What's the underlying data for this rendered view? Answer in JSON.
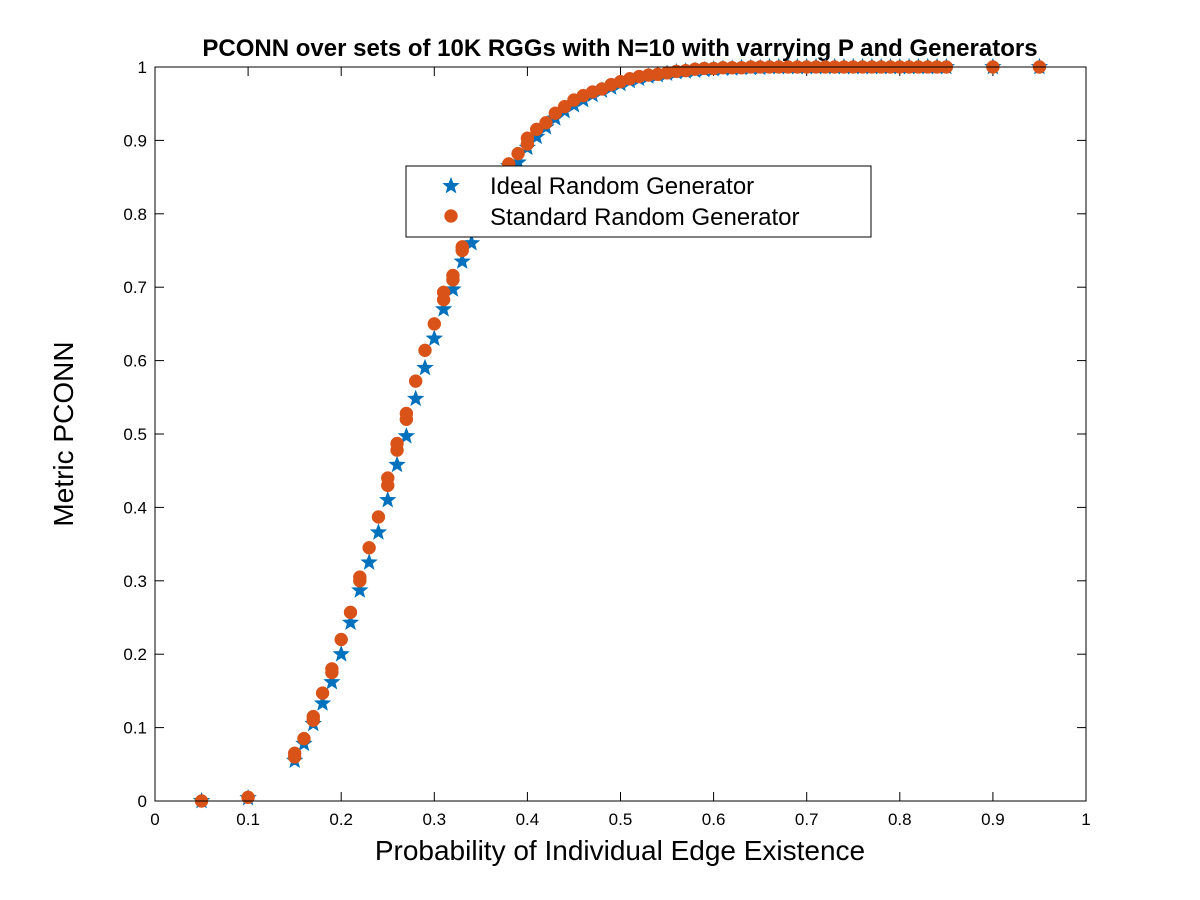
{
  "chart_data": {
    "type": "scatter",
    "title": "PCONN over sets of 10K RGGs with N=10 with varrying P and Generators",
    "xlabel": "Probability of Individual Edge Existence",
    "ylabel": "Metric PCONN",
    "xlim": [
      0,
      1
    ],
    "ylim": [
      0,
      1
    ],
    "xticks": [
      "0",
      "0.1",
      "0.2",
      "0.3",
      "0.4",
      "0.5",
      "0.6",
      "0.7",
      "0.8",
      "0.9",
      "1"
    ],
    "yticks": [
      "0",
      "0.1",
      "0.2",
      "0.3",
      "0.4",
      "0.5",
      "0.6",
      "0.7",
      "0.8",
      "0.9",
      "1"
    ],
    "grid": false,
    "legend_position": "upper-center",
    "series": [
      {
        "name": "Ideal Random Generator",
        "marker": "star",
        "color": "#0072BD",
        "x": [
          0.05,
          0.1,
          0.15,
          0.16,
          0.17,
          0.18,
          0.19,
          0.2,
          0.21,
          0.22,
          0.23,
          0.24,
          0.25,
          0.26,
          0.27,
          0.28,
          0.29,
          0.3,
          0.31,
          0.32,
          0.33,
          0.34,
          0.35,
          0.36,
          0.37,
          0.38,
          0.39,
          0.4,
          0.41,
          0.42,
          0.43,
          0.44,
          0.45,
          0.46,
          0.47,
          0.48,
          0.49,
          0.5,
          0.51,
          0.52,
          0.53,
          0.54,
          0.55,
          0.56,
          0.57,
          0.58,
          0.59,
          0.6,
          0.61,
          0.62,
          0.63,
          0.64,
          0.65,
          0.66,
          0.67,
          0.68,
          0.69,
          0.7,
          0.71,
          0.72,
          0.73,
          0.74,
          0.75,
          0.76,
          0.77,
          0.78,
          0.79,
          0.8,
          0.81,
          0.82,
          0.83,
          0.84,
          0.85,
          0.9,
          0.95
        ],
        "y": [
          0.0,
          0.004,
          0.055,
          0.078,
          0.105,
          0.133,
          0.162,
          0.2,
          0.243,
          0.287,
          0.325,
          0.366,
          0.41,
          0.458,
          0.497,
          0.548,
          0.59,
          0.63,
          0.67,
          0.697,
          0.735,
          0.76,
          0.79,
          0.82,
          0.845,
          0.865,
          0.87,
          0.89,
          0.905,
          0.918,
          0.93,
          0.94,
          0.948,
          0.955,
          0.962,
          0.968,
          0.972,
          0.977,
          0.981,
          0.984,
          0.987,
          0.989,
          0.991,
          0.993,
          0.994,
          0.995,
          0.996,
          0.997,
          0.998,
          0.998,
          0.999,
          0.999,
          0.999,
          1.0,
          1.0,
          1.0,
          1.0,
          1.0,
          1.0,
          1.0,
          1.0,
          1.0,
          1.0,
          1.0,
          1.0,
          1.0,
          1.0,
          1.0,
          1.0,
          1.0,
          1.0,
          1.0,
          1.0,
          1.0,
          1.0
        ]
      },
      {
        "name": "Standard Random Generator",
        "marker": "circle",
        "color": "#D95319",
        "x": [
          0.05,
          0.1,
          0.15,
          0.15,
          0.16,
          0.17,
          0.17,
          0.18,
          0.19,
          0.19,
          0.2,
          0.21,
          0.22,
          0.22,
          0.23,
          0.24,
          0.25,
          0.25,
          0.26,
          0.26,
          0.27,
          0.27,
          0.28,
          0.29,
          0.3,
          0.31,
          0.31,
          0.32,
          0.32,
          0.33,
          0.33,
          0.34,
          0.35,
          0.36,
          0.37,
          0.38,
          0.39,
          0.4,
          0.4,
          0.41,
          0.42,
          0.43,
          0.44,
          0.45,
          0.46,
          0.47,
          0.48,
          0.49,
          0.5,
          0.51,
          0.52,
          0.53,
          0.54,
          0.55,
          0.56,
          0.57,
          0.58,
          0.59,
          0.6,
          0.61,
          0.62,
          0.63,
          0.64,
          0.65,
          0.66,
          0.67,
          0.68,
          0.69,
          0.7,
          0.71,
          0.72,
          0.73,
          0.74,
          0.75,
          0.76,
          0.77,
          0.78,
          0.79,
          0.8,
          0.81,
          0.82,
          0.83,
          0.84,
          0.85,
          0.9,
          0.95
        ],
        "y": [
          0.0,
          0.005,
          0.06,
          0.065,
          0.085,
          0.11,
          0.115,
          0.147,
          0.175,
          0.18,
          0.22,
          0.257,
          0.3,
          0.305,
          0.345,
          0.387,
          0.43,
          0.44,
          0.478,
          0.487,
          0.52,
          0.528,
          0.572,
          0.614,
          0.65,
          0.683,
          0.693,
          0.71,
          0.716,
          0.75,
          0.755,
          0.78,
          0.808,
          0.835,
          0.855,
          0.868,
          0.882,
          0.895,
          0.903,
          0.915,
          0.924,
          0.937,
          0.946,
          0.955,
          0.961,
          0.966,
          0.97,
          0.976,
          0.98,
          0.984,
          0.987,
          0.989,
          0.99,
          0.992,
          0.994,
          0.995,
          0.997,
          0.998,
          0.998,
          0.999,
          0.999,
          0.999,
          1.0,
          1.0,
          1.0,
          1.0,
          1.0,
          1.0,
          1.0,
          1.0,
          1.0,
          1.0,
          1.0,
          1.0,
          1.0,
          1.0,
          1.0,
          1.0,
          1.0,
          1.0,
          1.0,
          1.0,
          1.0,
          1.0,
          1.0,
          1.0
        ]
      }
    ]
  }
}
